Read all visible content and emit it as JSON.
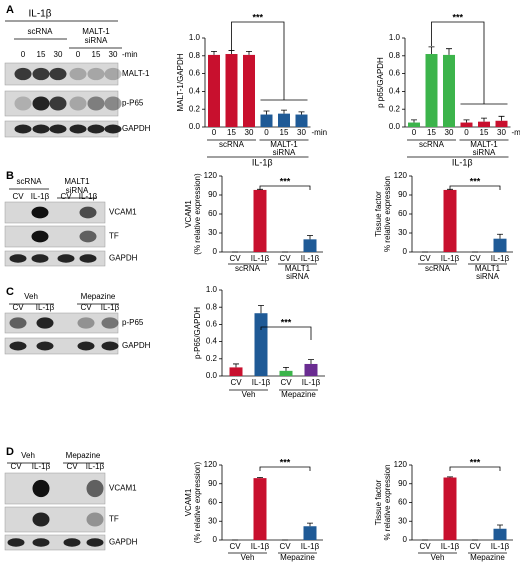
{
  "panels": [
    "A",
    "B",
    "C",
    "D"
  ],
  "blots": [
    {
      "header": "IL-1β",
      "groups": [
        [
          "scRNA"
        ],
        [
          "MALT-1",
          "siRNA"
        ]
      ],
      "lanes": [
        "0",
        "15",
        "30",
        "0",
        "15",
        "30"
      ],
      "lane_suffix": "-min",
      "rows": [
        "MALT-1",
        "p-P65",
        "GAPDH"
      ]
    },
    {
      "groups": [
        [
          "scRNA"
        ],
        [
          "MALT1",
          "siRNA"
        ]
      ],
      "lanes": [
        "CV",
        "IL-1β",
        "CV",
        "IL-1β"
      ],
      "rows": [
        "VCAM1",
        "TF",
        "GAPDH"
      ]
    },
    {
      "groups": [
        [
          "Veh"
        ],
        [
          "Mepazine"
        ]
      ],
      "lanes": [
        "CV",
        "IL-1β",
        "CV",
        "IL-1β"
      ],
      "rows": [
        "p-P65",
        "GAPDH"
      ]
    },
    {
      "groups": [
        [
          "Veh"
        ],
        [
          "Mepazine"
        ]
      ],
      "lanes": [
        "CV",
        "IL-1β",
        "CV",
        "IL-1β"
      ],
      "rows": [
        "VCAM1",
        "TF",
        "GAPDH"
      ]
    }
  ],
  "chart_data": [
    {
      "type": "bar",
      "ylabel": [
        "MALT-1/GAPDH"
      ],
      "categories": [
        "0",
        "15",
        "30",
        "0",
        "15",
        "30"
      ],
      "x_suffix": "-min",
      "groups": [
        [
          "scRNA"
        ],
        [
          "MALT-1",
          "siRNA"
        ]
      ],
      "xlabel": "IL-1β",
      "values": [
        0.81,
        0.82,
        0.81,
        0.14,
        0.15,
        0.14
      ],
      "errors": [
        0.04,
        0.04,
        0.04,
        0.04,
        0.04,
        0.03
      ],
      "colors": [
        "#c8102e",
        "#c8102e",
        "#c8102e",
        "#1f5a96",
        "#1f5a96",
        "#1f5a96"
      ],
      "ylim": [
        0,
        1.0
      ],
      "yticks": [
        {
          "value": 0,
          "label": "0.0"
        },
        {
          "value": 0.2,
          "label": "0.2"
        },
        {
          "value": 0.4,
          "label": "0.4"
        },
        {
          "value": 0.6,
          "label": "0.6"
        },
        {
          "value": 0.8,
          "label": "0.8"
        },
        {
          "value": 1.0,
          "label": "1.0"
        }
      ],
      "significance": "***"
    },
    {
      "type": "bar",
      "ylabel": [
        "p p65/GAPDH"
      ],
      "categories": [
        "0",
        "15",
        "30",
        "0",
        "15",
        "30"
      ],
      "x_suffix": "-min",
      "groups": [
        [
          "scRNA"
        ],
        [
          "MALT-1",
          "siRNA"
        ]
      ],
      "xlabel": "IL-1β",
      "values": [
        0.05,
        0.82,
        0.81,
        0.05,
        0.06,
        0.07
      ],
      "errors": [
        0.03,
        0.08,
        0.07,
        0.03,
        0.04,
        0.05
      ],
      "colors": [
        "#3cb44b",
        "#3cb44b",
        "#3cb44b",
        "#c8102e",
        "#c8102e",
        "#c8102e"
      ],
      "ylim": [
        0,
        1.0
      ],
      "yticks": [
        {
          "value": 0,
          "label": "0.0"
        },
        {
          "value": 0.2,
          "label": "0.2"
        },
        {
          "value": 0.4,
          "label": "0.4"
        },
        {
          "value": 0.6,
          "label": "0.6"
        },
        {
          "value": 0.8,
          "label": "0.8"
        },
        {
          "value": 1.0,
          "label": "1.0"
        }
      ],
      "significance": "***"
    },
    {
      "type": "bar",
      "ylabel": [
        "VCAM1",
        "(% relative expression)"
      ],
      "categories": [
        "CV",
        "IL-1β",
        "CV",
        "IL-1β"
      ],
      "groups": [
        [
          "scRNA"
        ],
        [
          "MALT1",
          "siRNA"
        ]
      ],
      "values": [
        0,
        98,
        0,
        20
      ],
      "errors": [
        0,
        1,
        0,
        6
      ],
      "colors": [
        "#c8102e",
        "#c8102e",
        "#1f5a96",
        "#1f5a96"
      ],
      "ylim": [
        0,
        120
      ],
      "yticks": [
        0,
        30,
        60,
        90,
        120
      ],
      "significance": "***"
    },
    {
      "type": "bar",
      "ylabel": [
        "Tissue factor",
        "% relative expression"
      ],
      "categories": [
        "CV",
        "IL-1β",
        "CV",
        "IL-1β"
      ],
      "groups": [
        [
          "scRNA"
        ],
        [
          "MALT1",
          "siRNA"
        ]
      ],
      "values": [
        0,
        98,
        0,
        21
      ],
      "errors": [
        0,
        1,
        0,
        7
      ],
      "colors": [
        "#c8102e",
        "#c8102e",
        "#1f5a96",
        "#1f5a96"
      ],
      "ylim": [
        0,
        120
      ],
      "yticks": [
        0,
        30,
        60,
        90,
        120
      ],
      "significance": "***"
    },
    {
      "type": "bar",
      "ylabel": [
        "p-P65/GAPDH"
      ],
      "categories": [
        "CV",
        "IL-1β",
        "CV",
        "IL-1β"
      ],
      "groups": [
        [
          "Veh"
        ],
        [
          "Mepazine"
        ]
      ],
      "values": [
        0.1,
        0.73,
        0.06,
        0.14
      ],
      "errors": [
        0.04,
        0.09,
        0.04,
        0.05
      ],
      "colors": [
        "#c8102e",
        "#1f5a96",
        "#3cb44b",
        "#6a2c91"
      ],
      "ylim": [
        0,
        1.0
      ],
      "yticks": [
        {
          "value": 0,
          "label": "0.0"
        },
        {
          "value": 0.2,
          "label": "0.2"
        },
        {
          "value": 0.4,
          "label": "0.4"
        },
        {
          "value": 0.6,
          "label": "0.6"
        },
        {
          "value": 0.8,
          "label": "0.8"
        },
        {
          "value": 1.0,
          "label": "1.0"
        }
      ],
      "significance": "***"
    },
    {
      "type": "bar",
      "ylabel": [
        "VCAM1",
        "(% relative expression)"
      ],
      "categories": [
        "CV",
        "IL-1β",
        "CV",
        "IL-1β"
      ],
      "groups": [
        [
          "Veh"
        ],
        [
          "Mepazine"
        ]
      ],
      "values": [
        0,
        99,
        0,
        22
      ],
      "errors": [
        0,
        1,
        0,
        5
      ],
      "colors": [
        "#c8102e",
        "#c8102e",
        "#1f5a96",
        "#1f5a96"
      ],
      "ylim": [
        0,
        120
      ],
      "yticks": [
        0,
        30,
        60,
        90,
        120
      ],
      "significance": "***"
    },
    {
      "type": "bar",
      "ylabel": [
        "Tissue factor",
        "% relative expression"
      ],
      "categories": [
        "CV",
        "IL-1β",
        "CV",
        "IL-1β"
      ],
      "groups": [
        [
          "Veh"
        ],
        [
          "Mepazine"
        ]
      ],
      "values": [
        0,
        100,
        0,
        18
      ],
      "errors": [
        0,
        1,
        0,
        6
      ],
      "colors": [
        "#c8102e",
        "#c8102e",
        "#1f5a96",
        "#1f5a96"
      ],
      "ylim": [
        0,
        120
      ],
      "yticks": [
        0,
        30,
        60,
        90,
        120
      ],
      "significance": "***"
    }
  ]
}
